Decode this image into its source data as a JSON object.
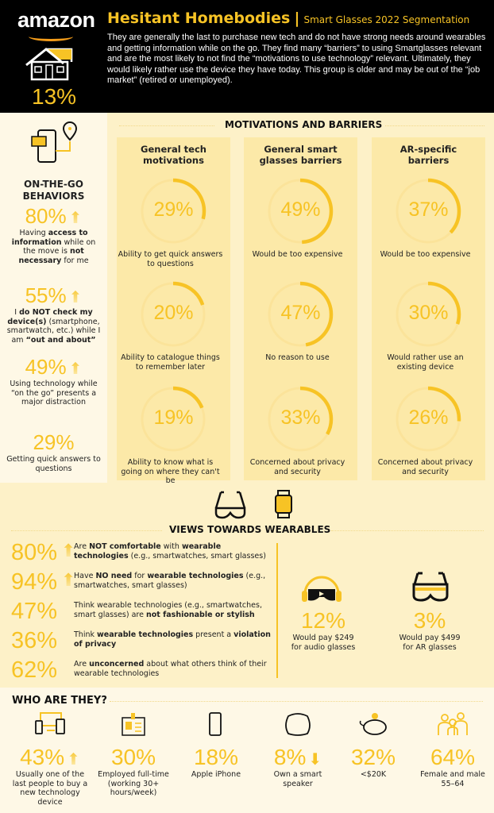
{
  "header": {
    "brand": "amazon",
    "title": "Hesitant Homebodies",
    "separator": "|",
    "subtitle": "Smart Glasses 2022 Segmentation",
    "segment_share": "13%",
    "description": "They are generally the last to purchase new tech and do not have strong needs around wearables and getting information while on the go.  They find many “barriers” to using Smartglasses relevant and are the most likely to not find the “motivations to use technology” relevant.  Ultimately, they would likely rather use the device they have today. This group is older and may be out of the “job market” (retired or unemployed)."
  },
  "colors": {
    "accent": "#f7c325",
    "track": "#fbe39a",
    "header_bg": "#000000"
  },
  "on_the_go": {
    "title": "ON-THE-GO BEHAVIORS",
    "items": [
      {
        "value": "80%",
        "arrow": "up",
        "text": [
          {
            "t": "Having "
          },
          {
            "t": "access to information",
            "b": 1
          },
          {
            "t": " while on the move is "
          },
          {
            "t": "not necessary",
            "b": 1
          },
          {
            "t": " for me"
          }
        ]
      },
      {
        "value": "55%",
        "arrow": "up",
        "text": [
          {
            "t": "I "
          },
          {
            "t": "do NOT check my device(s)",
            "b": 1
          },
          {
            "t": " (smartphone, smartwatch, etc.) while I am "
          },
          {
            "t": "“out and about”",
            "b": 1
          }
        ]
      },
      {
        "value": "49%",
        "arrow": "up",
        "text": [
          {
            "t": "Using technology while “on the go” presents a major distraction"
          }
        ]
      },
      {
        "value": "29%",
        "arrow": "",
        "text": [
          {
            "t": "Getting quick answers to questions"
          }
        ]
      }
    ]
  },
  "motivations": {
    "title": "MOTIVATIONS AND BARRIERS",
    "columns": [
      {
        "heading": "General tech motivations",
        "items": [
          {
            "value": 29,
            "label": "29%",
            "text": "Ability to get quick answers to questions"
          },
          {
            "value": 20,
            "label": "20%",
            "text": "Ability to catalogue things to remember later"
          },
          {
            "value": 19,
            "label": "19%",
            "text": "Ability to know what is going on where they can't be"
          }
        ]
      },
      {
        "heading": "General smart glasses barriers",
        "items": [
          {
            "value": 49,
            "label": "49%",
            "text": "Would be too expensive"
          },
          {
            "value": 47,
            "label": "47%",
            "text": "No reason to use"
          },
          {
            "value": 33,
            "label": "33%",
            "text": "Concerned about privacy and security"
          }
        ]
      },
      {
        "heading": "AR-specific barriers",
        "items": [
          {
            "value": 37,
            "label": "37%",
            "text": "Would be too expensive"
          },
          {
            "value": 30,
            "label": "30%",
            "text": "Would rather use an existing device"
          },
          {
            "value": 26,
            "label": "26%",
            "text": "Concerned about privacy and security"
          }
        ]
      }
    ]
  },
  "views": {
    "title": "VIEWS TOWARDS WEARABLES",
    "items": [
      {
        "value": "80%",
        "arrow": "up",
        "text": [
          {
            "t": "Are "
          },
          {
            "t": "NOT comfortable",
            "b": 1
          },
          {
            "t": " with "
          },
          {
            "t": "wearable technologies",
            "b": 1
          },
          {
            "t": " (e.g., smartwatches, smart glasses)"
          }
        ]
      },
      {
        "value": "94%",
        "arrow": "up",
        "text": [
          {
            "t": "Have "
          },
          {
            "t": "NO need",
            "b": 1
          },
          {
            "t": " for "
          },
          {
            "t": "wearable technologies",
            "b": 1
          },
          {
            "t": " (e.g., smartwatches, smart glasses)"
          }
        ]
      },
      {
        "value": "47%",
        "arrow": "",
        "text": [
          {
            "t": "Think wearable technologies (e.g., smartwatches, smart glasses) are "
          },
          {
            "t": "not fashionable or stylish",
            "b": 1
          }
        ]
      },
      {
        "value": "36%",
        "arrow": "",
        "text": [
          {
            "t": "Think "
          },
          {
            "t": "wearable technologies",
            "b": 1
          },
          {
            "t": " present a "
          },
          {
            "t": "violation of privacy",
            "b": 1
          }
        ]
      },
      {
        "value": "62%",
        "arrow": "",
        "text": [
          {
            "t": "Are "
          },
          {
            "t": "unconcerned",
            "b": 1
          },
          {
            "t": " about what others think of their wearable technologies"
          }
        ]
      }
    ],
    "pay": [
      {
        "value": "12%",
        "text": "Would pay $249 for audio glasses",
        "icon": "audio-glasses-icon"
      },
      {
        "value": "3%",
        "text": "Would pay $499 for AR glasses",
        "icon": "ar-glasses-icon"
      }
    ]
  },
  "who": {
    "title": "WHO ARE THEY?",
    "items": [
      {
        "value": "43%",
        "arrow": "up",
        "text": "Usually one of the last people to buy a new technology device",
        "icon": "devices-icon"
      },
      {
        "value": "30%",
        "arrow": "",
        "text": "Employed full-time (working 30+ hours/week)",
        "icon": "id-badge-icon"
      },
      {
        "value": "18%",
        "arrow": "",
        "text": "Apple iPhone",
        "icon": "phone-icon"
      },
      {
        "value": "8%",
        "arrow": "down",
        "text": "Own a smart speaker",
        "icon": "smart-speaker-icon"
      },
      {
        "value": "32%",
        "arrow": "",
        "text": "<$20K",
        "icon": "piggy-bank-icon"
      },
      {
        "value": "64%",
        "arrow": "",
        "text": "Female and male 55–64",
        "icon": "family-icon"
      }
    ]
  }
}
